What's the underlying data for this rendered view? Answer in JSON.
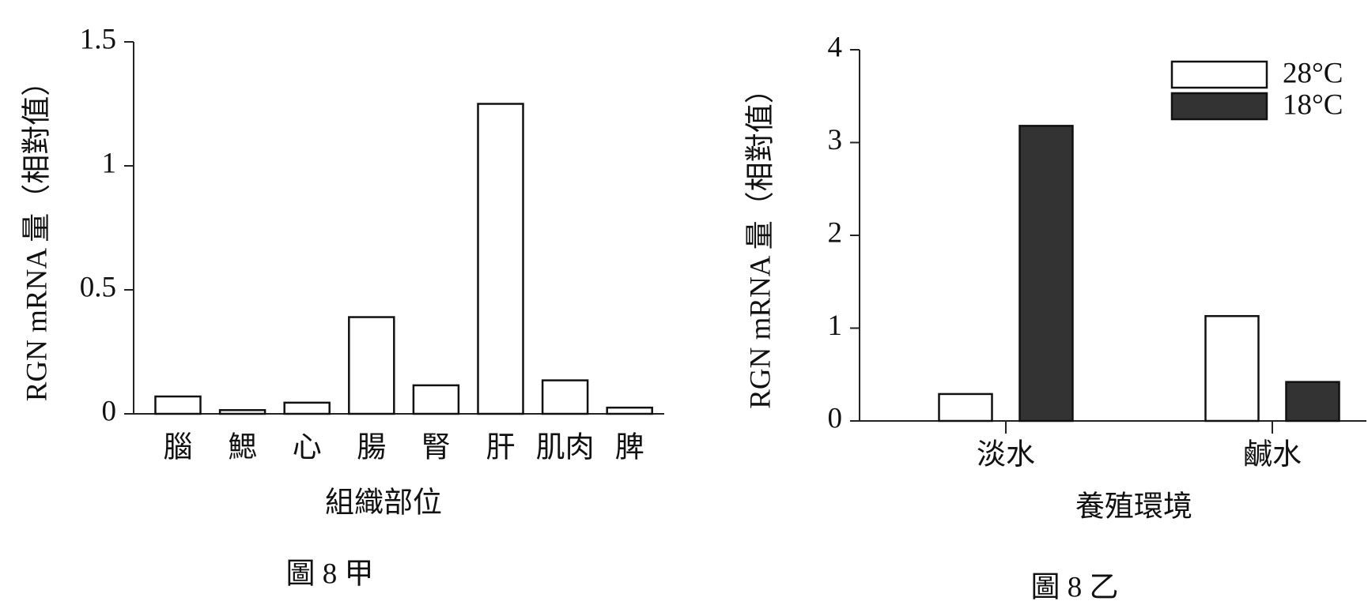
{
  "chart_data": [
    {
      "type": "bar",
      "title": "圖 8 甲",
      "y_label": "RGN mRNA 量（相對值）",
      "x_label": "組織部位",
      "categories": [
        "腦",
        "鰓",
        "心",
        "腸",
        "腎",
        "肝",
        "肌肉",
        "脾"
      ],
      "values": [
        0.07,
        0.015,
        0.045,
        0.39,
        0.115,
        1.25,
        0.135,
        0.025
      ],
      "color": "#ffffff",
      "ylim": [
        0,
        1.5
      ],
      "yticks": [
        0,
        0.5,
        1,
        1.5
      ],
      "grid": false
    },
    {
      "type": "grouped_bar",
      "title": "圖 8 乙",
      "y_label": "RGN mRNA 量（相對值）",
      "x_label": "養殖環境",
      "categories": [
        "淡水",
        "鹹水"
      ],
      "series": [
        {
          "name": "28°C",
          "color": "#ffffff",
          "values": [
            0.29,
            1.13
          ]
        },
        {
          "name": "18°C",
          "color": "#333333",
          "values": [
            3.18,
            0.42
          ]
        }
      ],
      "ylim": [
        0,
        4
      ],
      "yticks": [
        0,
        1,
        2,
        3,
        4
      ],
      "grid": false,
      "legend": "upper right"
    }
  ]
}
